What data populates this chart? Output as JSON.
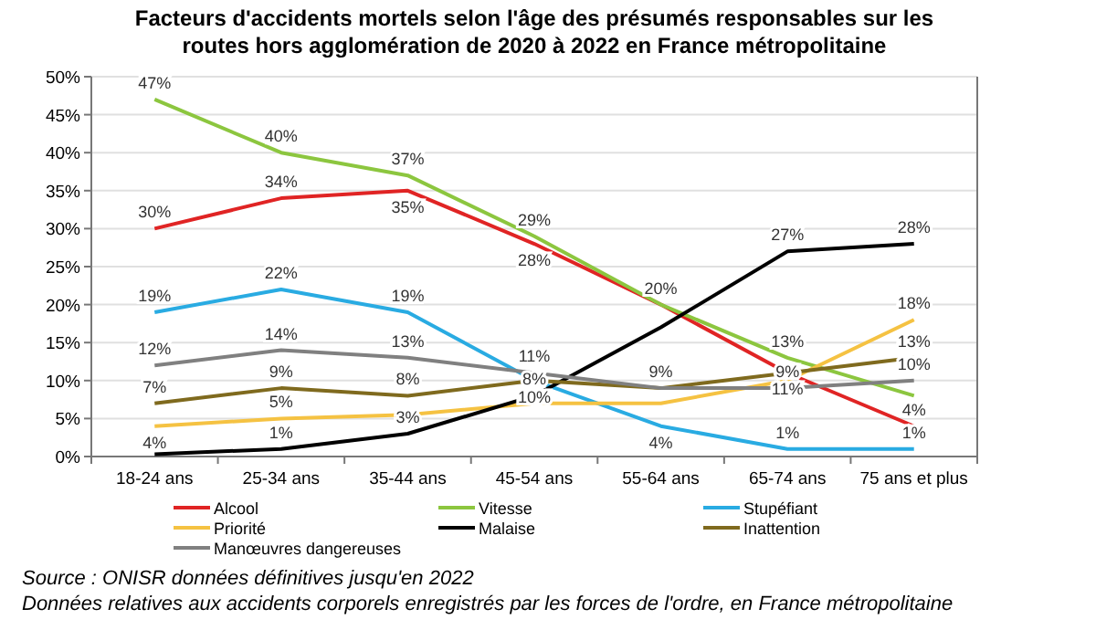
{
  "chart_data": {
    "type": "line",
    "title": "Facteurs d'accidents mortels selon l'âge des présumés responsables sur les routes hors agglomération de 2020 à 2022 en France métropolitaine",
    "categories": [
      "18-24 ans",
      "25-34 ans",
      "35-44 ans",
      "45-54 ans",
      "55-64 ans",
      "65-74 ans",
      "75 ans et plus"
    ],
    "series": [
      {
        "name": "Alcool",
        "color": "#e02424",
        "values": [
          30,
          34,
          35,
          28,
          20,
          11,
          4
        ],
        "value_labels": [
          "30%",
          "34%",
          "35%",
          "28%",
          null,
          "11%",
          "4%"
        ]
      },
      {
        "name": "Vitesse",
        "color": "#8cc63f",
        "values": [
          47,
          40,
          37,
          29,
          20,
          13,
          8
        ],
        "value_labels": [
          "47%",
          "40%",
          "37%",
          "29%",
          "20%",
          "13%",
          null
        ]
      },
      {
        "name": "Stupéfiant",
        "color": "#29abe2",
        "values": [
          19,
          22,
          19,
          10,
          4,
          1,
          1
        ],
        "value_labels": [
          "19%",
          "22%",
          "19%",
          null,
          "4%",
          "1%",
          "1%"
        ]
      },
      {
        "name": "Priorité",
        "color": "#f5c242",
        "values": [
          4,
          5,
          5.5,
          7,
          7,
          10,
          18
        ],
        "value_labels": [
          "4%",
          "5%",
          null,
          null,
          null,
          null,
          "18%"
        ]
      },
      {
        "name": "Malaise",
        "color": "#000000",
        "values": [
          0.3,
          1,
          3,
          8,
          17,
          27,
          28
        ],
        "value_labels": [
          null,
          "1%",
          "3%",
          "8%",
          null,
          "27%",
          "28%"
        ]
      },
      {
        "name": "Inattention",
        "color": "#7f6a1e",
        "values": [
          7,
          9,
          8,
          10,
          9,
          11,
          13
        ],
        "value_labels": [
          "7%",
          "9%",
          "8%",
          "10%",
          null,
          null,
          "13%"
        ]
      },
      {
        "name": "Manœuvres dangereuses",
        "color": "#808080",
        "values": [
          12,
          14,
          13,
          11,
          9,
          9,
          10
        ],
        "value_labels": [
          "12%",
          "14%",
          "13%",
          "11%",
          "9%",
          "9%",
          "10%"
        ]
      }
    ],
    "ylim": [
      0,
      50
    ],
    "yticks": [
      {
        "value": 0,
        "label": "0%"
      },
      {
        "value": 5,
        "label": "5%"
      },
      {
        "value": 10,
        "label": "10%"
      },
      {
        "value": 15,
        "label": "15%"
      },
      {
        "value": 20,
        "label": "20%"
      },
      {
        "value": 25,
        "label": "25%"
      },
      {
        "value": 30,
        "label": "30%"
      },
      {
        "value": 35,
        "label": "35%"
      },
      {
        "value": 40,
        "label": "40%"
      },
      {
        "value": 45,
        "label": "45%"
      },
      {
        "value": 50,
        "label": "50%"
      }
    ],
    "grid": "y",
    "legend": "bottom",
    "line_style": "solid",
    "annotations": [
      "Source : ONISR données définitives jusqu'en 2022",
      "Données relatives aux accidents corporels enregistrés par les forces de l'ordre, en France métropolitaine"
    ]
  }
}
